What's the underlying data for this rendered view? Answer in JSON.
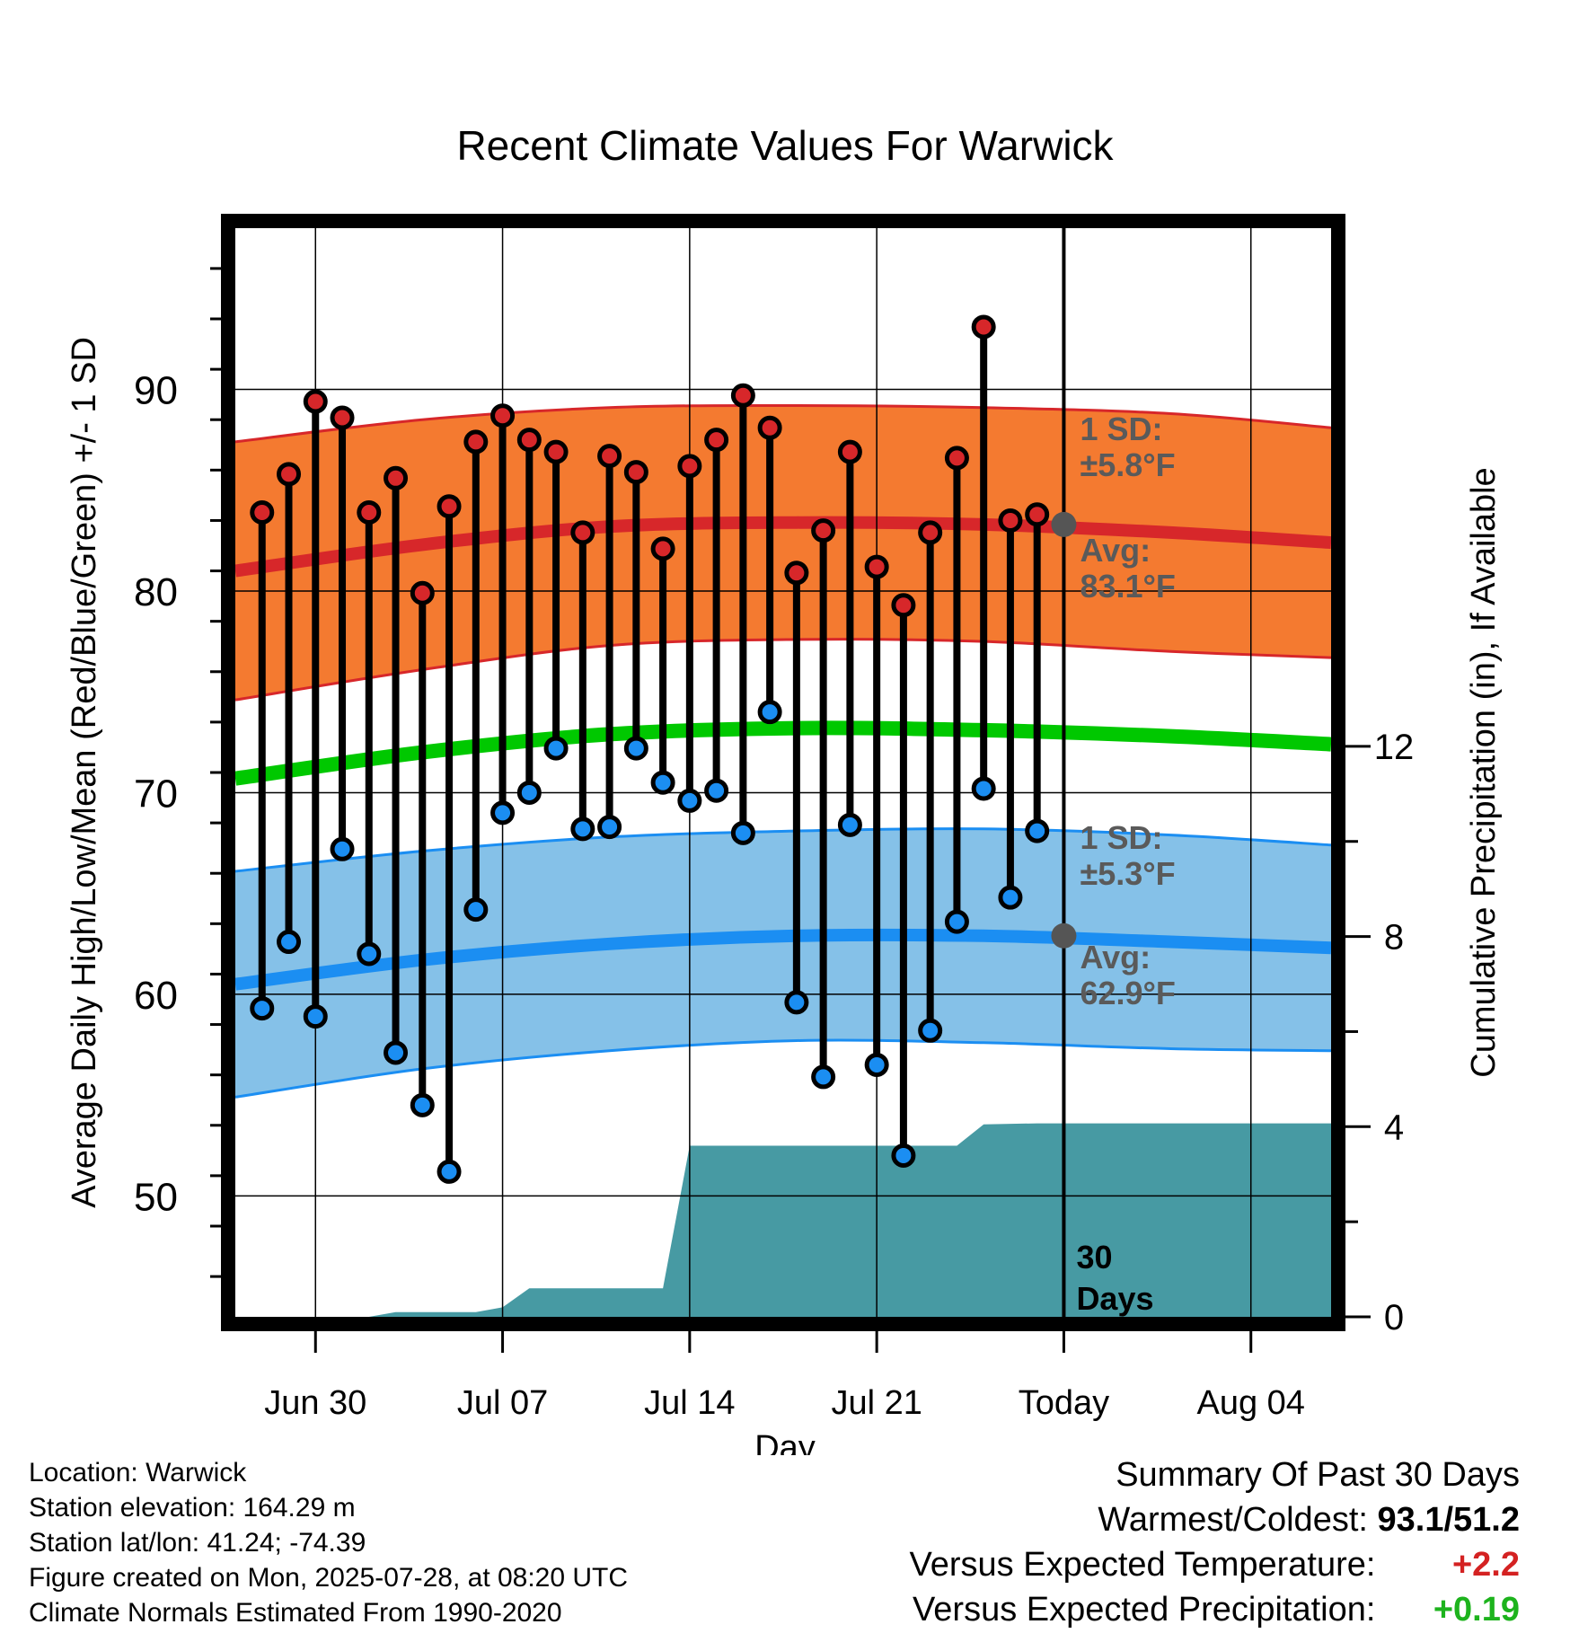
{
  "chart_data": {
    "type": "line",
    "title": "Recent Climate Values For Warwick",
    "xlabel": "Day",
    "ylabel": "Average Daily High/Low/Mean (Red/Blue/Green) +/- 1 SD",
    "y2label": "Cumulative Precipitation (in), If Available",
    "xlim": [
      "2025-06-27",
      "2025-08-07"
    ],
    "ylim": [
      44,
      98
    ],
    "y2lim": [
      0,
      22.9
    ],
    "x_ticks": [
      {
        "date": "2025-06-30",
        "label": "Jun 30"
      },
      {
        "date": "2025-07-07",
        "label": "Jul 07"
      },
      {
        "date": "2025-07-14",
        "label": "Jul 14"
      },
      {
        "date": "2025-07-21",
        "label": "Jul 21"
      },
      {
        "date": "2025-07-28",
        "label": "Today"
      },
      {
        "date": "2025-08-04",
        "label": "Aug 04"
      }
    ],
    "y_ticks": [
      "50",
      "60",
      "70",
      "80",
      "90"
    ],
    "y2_ticks": [
      "0",
      "4",
      "8",
      "12"
    ],
    "grid": true,
    "today": "2025-07-28",
    "period_label": [
      "30",
      "Days"
    ],
    "daily": [
      {
        "date": "2025-06-28",
        "high": 83.9,
        "low": 59.3
      },
      {
        "date": "2025-06-29",
        "high": 85.8,
        "low": 62.6
      },
      {
        "date": "2025-06-30",
        "high": 89.4,
        "low": 58.9
      },
      {
        "date": "2025-07-01",
        "high": 88.6,
        "low": 67.2
      },
      {
        "date": "2025-07-02",
        "high": 83.9,
        "low": 62.0
      },
      {
        "date": "2025-07-03",
        "high": 85.6,
        "low": 57.1
      },
      {
        "date": "2025-07-04",
        "high": 79.9,
        "low": 54.5
      },
      {
        "date": "2025-07-05",
        "high": 84.2,
        "low": 51.2
      },
      {
        "date": "2025-07-06",
        "high": 87.4,
        "low": 64.2
      },
      {
        "date": "2025-07-07",
        "high": 88.7,
        "low": 69.0
      },
      {
        "date": "2025-07-08",
        "high": 87.5,
        "low": 70.0
      },
      {
        "date": "2025-07-09",
        "high": 86.9,
        "low": 72.2
      },
      {
        "date": "2025-07-10",
        "high": 82.9,
        "low": 68.2
      },
      {
        "date": "2025-07-11",
        "high": 86.7,
        "low": 68.3
      },
      {
        "date": "2025-07-12",
        "high": 85.9,
        "low": 72.2
      },
      {
        "date": "2025-07-13",
        "high": 82.1,
        "low": 70.5
      },
      {
        "date": "2025-07-14",
        "high": 86.2,
        "low": 69.6
      },
      {
        "date": "2025-07-15",
        "high": 87.5,
        "low": 70.1
      },
      {
        "date": "2025-07-16",
        "high": 89.7,
        "low": 68.0
      },
      {
        "date": "2025-07-17",
        "high": 88.1,
        "low": 74.0
      },
      {
        "date": "2025-07-18",
        "high": 80.9,
        "low": 59.6
      },
      {
        "date": "2025-07-19",
        "high": 83.0,
        "low": 55.9
      },
      {
        "date": "2025-07-20",
        "high": 86.9,
        "low": 68.4
      },
      {
        "date": "2025-07-21",
        "high": 81.2,
        "low": 56.5
      },
      {
        "date": "2025-07-22",
        "high": 79.3,
        "low": 52.0
      },
      {
        "date": "2025-07-23",
        "high": 82.9,
        "low": 58.2
      },
      {
        "date": "2025-07-24",
        "high": 86.6,
        "low": 63.6
      },
      {
        "date": "2025-07-25",
        "high": 93.1,
        "low": 70.2
      },
      {
        "date": "2025-07-26",
        "high": 83.5,
        "low": 64.8
      },
      {
        "date": "2025-07-27",
        "high": 83.8,
        "low": 68.1
      }
    ],
    "normals": [
      {
        "date": "2025-06-27",
        "high": 81.0,
        "high_sd": 6.4,
        "low": 60.5,
        "low_sd": 5.6,
        "mean": 70.7
      },
      {
        "date": "2025-07-04",
        "high": 82.3,
        "high_sd": 6.2,
        "low": 61.7,
        "low_sd": 5.4,
        "mean": 72.0
      },
      {
        "date": "2025-07-11",
        "high": 83.2,
        "high_sd": 5.9,
        "low": 62.5,
        "low_sd": 5.3,
        "mean": 72.9
      },
      {
        "date": "2025-07-18",
        "high": 83.4,
        "high_sd": 5.8,
        "low": 62.9,
        "low_sd": 5.2,
        "mean": 73.2
      },
      {
        "date": "2025-07-25",
        "high": 83.3,
        "high_sd": 5.8,
        "low": 62.9,
        "low_sd": 5.3,
        "mean": 73.1
      },
      {
        "date": "2025-08-01",
        "high": 82.9,
        "high_sd": 5.9,
        "low": 62.6,
        "low_sd": 5.3,
        "mean": 72.8
      },
      {
        "date": "2025-08-07",
        "high": 82.4,
        "high_sd": 5.7,
        "low": 62.3,
        "low_sd": 5.1,
        "mean": 72.4
      }
    ],
    "precip": [
      {
        "date": "2025-06-27",
        "cum": 0.0
      },
      {
        "date": "2025-07-02",
        "cum": 0.0
      },
      {
        "date": "2025-07-03",
        "cum": 0.1
      },
      {
        "date": "2025-07-06",
        "cum": 0.1
      },
      {
        "date": "2025-07-07",
        "cum": 0.2
      },
      {
        "date": "2025-07-08",
        "cum": 0.6
      },
      {
        "date": "2025-07-13",
        "cum": 0.6
      },
      {
        "date": "2025-07-14",
        "cum": 3.6
      },
      {
        "date": "2025-07-24",
        "cum": 3.6
      },
      {
        "date": "2025-07-25",
        "cum": 4.05
      },
      {
        "date": "2025-07-27",
        "cum": 4.07
      },
      {
        "date": "2025-08-07",
        "cum": 4.07
      }
    ],
    "annotations": {
      "high_sd": [
        "1 SD:",
        "±5.8°F"
      ],
      "high_avg": [
        "Avg:",
        "83.1°F"
      ],
      "low_sd": [
        "1 SD:",
        "±5.3°F"
      ],
      "low_avg": [
        "Avg:",
        "62.9°F"
      ]
    },
    "colors": {
      "high_band": "#f47a30",
      "high_edge": "#d7272a",
      "low_band": "#85c1e8",
      "low_edge": "#1b8ef2",
      "mean": "#00c800",
      "precip": "#479aa3",
      "marker_high": "#d7272a",
      "marker_low": "#1b8ef2",
      "today_marker": "#555555"
    }
  },
  "meta": {
    "location": "Location: Warwick",
    "elevation": "Station elevation: 164.29 m",
    "latlon": "Station lat/lon: 41.24; -74.39",
    "created": "Figure created on Mon, 2025-07-28, at 08:20 UTC",
    "normals": "Climate Normals Estimated From 1990-2020"
  },
  "summary": {
    "title": "Summary Of Past 30 Days",
    "warm_cold_label": "Warmest/Coldest:",
    "warm_cold_value": "93.1/51.2",
    "temp_label": "Versus Expected Temperature:",
    "temp_value": "+2.2",
    "precip_label": "Versus Expected Precipitation:",
    "precip_value": "+0.19"
  }
}
